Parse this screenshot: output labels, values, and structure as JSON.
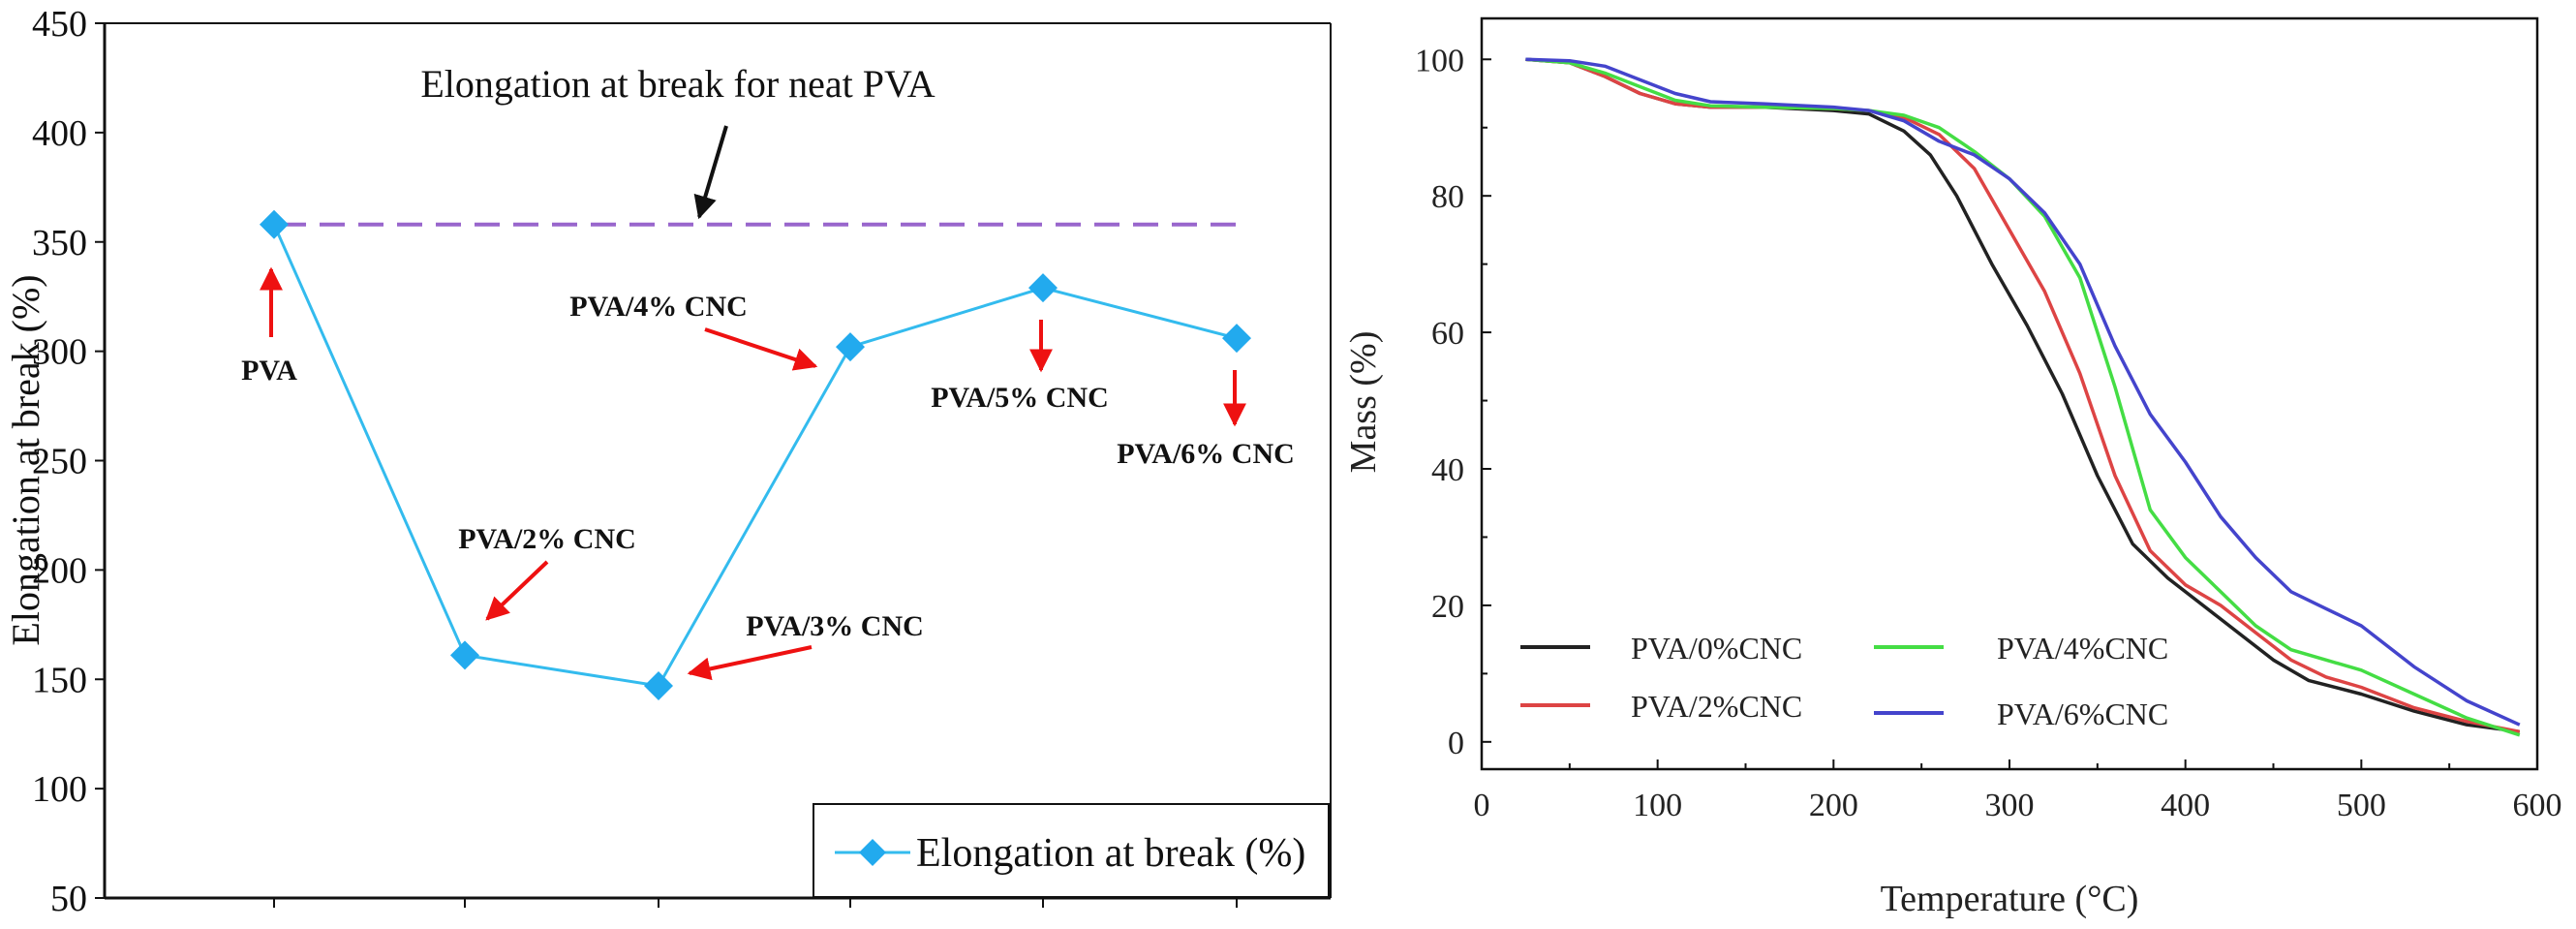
{
  "chart_data": [
    {
      "type": "line",
      "title": "",
      "xlabel": "",
      "ylabel": "Elongation at break (%)",
      "ylim": [
        50,
        450
      ],
      "yticks": [
        50,
        100,
        150,
        200,
        250,
        300,
        350,
        400,
        450
      ],
      "categories": [
        "PVA",
        "PVA/2% CNC",
        "PVA/3% CNC",
        "PVA/4% CNC",
        "PVA/5% CNC",
        "PVA/6% CNC"
      ],
      "series": [
        {
          "name": "Elongation at break (%)",
          "values": [
            358,
            161,
            147,
            302,
            329,
            306
          ],
          "color": "#33bbee",
          "marker": "diamond"
        }
      ],
      "reference_line": {
        "value": 358,
        "label": "Elongation at break for neat PVA",
        "color": "#9966cc",
        "style": "dashed"
      },
      "point_labels": [
        "PVA",
        "PVA/2% CNC",
        "PVA/3% CNC",
        "PVA/4% CNC",
        "PVA/5% CNC",
        "PVA/6% CNC"
      ],
      "legend": {
        "position": "bottom-right",
        "label": "Elongation at break (%)"
      }
    },
    {
      "type": "line",
      "title": "",
      "xlabel": "Temperature (°C)",
      "ylabel": "Mass (%)",
      "xlim": [
        0,
        600
      ],
      "ylim": [
        -4,
        106
      ],
      "xticks": [
        0,
        100,
        200,
        300,
        400,
        500,
        600
      ],
      "yticks": [
        0,
        20,
        40,
        60,
        80,
        100
      ],
      "series": [
        {
          "name": "PVA/0%CNC",
          "color": "#222222",
          "x": [
            25,
            50,
            70,
            90,
            110,
            130,
            160,
            200,
            220,
            240,
            255,
            270,
            290,
            310,
            330,
            350,
            370,
            390,
            410,
            430,
            450,
            470,
            500,
            530,
            560,
            590
          ],
          "y": [
            100,
            99.5,
            97.5,
            95,
            93.5,
            93,
            93,
            92.5,
            92,
            89.5,
            86,
            80,
            70,
            61,
            51,
            39,
            29,
            24,
            20,
            16,
            12,
            9,
            7,
            4.5,
            2.5,
            1.5
          ]
        },
        {
          "name": "PVA/2%CNC",
          "color": "#dd4444",
          "x": [
            25,
            50,
            70,
            90,
            110,
            130,
            160,
            200,
            220,
            240,
            260,
            280,
            300,
            320,
            340,
            360,
            380,
            400,
            420,
            440,
            460,
            480,
            500,
            530,
            560,
            590
          ],
          "y": [
            100,
            99.5,
            97.5,
            95,
            93.5,
            93,
            93,
            92.8,
            92.5,
            91.5,
            89,
            84,
            75,
            66,
            54,
            39,
            28,
            23,
            20,
            16,
            12,
            9.5,
            8,
            5,
            3,
            1.5
          ]
        },
        {
          "name": "PVA/4%CNC",
          "color": "#44dd44",
          "x": [
            25,
            50,
            70,
            90,
            110,
            130,
            160,
            200,
            220,
            240,
            260,
            280,
            300,
            320,
            340,
            360,
            380,
            400,
            420,
            440,
            460,
            480,
            500,
            530,
            560,
            590
          ],
          "y": [
            100,
            99.5,
            98,
            96,
            94,
            93.2,
            93,
            92.8,
            92.5,
            91.8,
            90,
            86.5,
            82.5,
            77,
            68,
            52,
            34,
            27,
            22,
            17,
            13.5,
            12,
            10.5,
            7,
            3.5,
            1
          ]
        },
        {
          "name": "PVA/6%CNC",
          "color": "#4444cc",
          "x": [
            25,
            50,
            70,
            90,
            110,
            130,
            160,
            200,
            220,
            240,
            260,
            280,
            300,
            320,
            340,
            360,
            380,
            400,
            420,
            440,
            460,
            480,
            500,
            530,
            560,
            590
          ],
          "y": [
            100,
            99.8,
            99,
            97,
            95,
            93.8,
            93.5,
            93,
            92.5,
            91,
            88,
            86,
            82.5,
            77.5,
            70,
            58,
            48,
            41,
            33,
            27,
            22,
            19.5,
            17,
            11,
            6,
            2.5
          ]
        }
      ],
      "legend": {
        "position": "bottom-left",
        "columns": 2,
        "entries": [
          "PVA/0%CNC",
          "PVA/4%CNC",
          "PVA/2%CNC",
          "PVA/6%CNC"
        ]
      }
    }
  ]
}
